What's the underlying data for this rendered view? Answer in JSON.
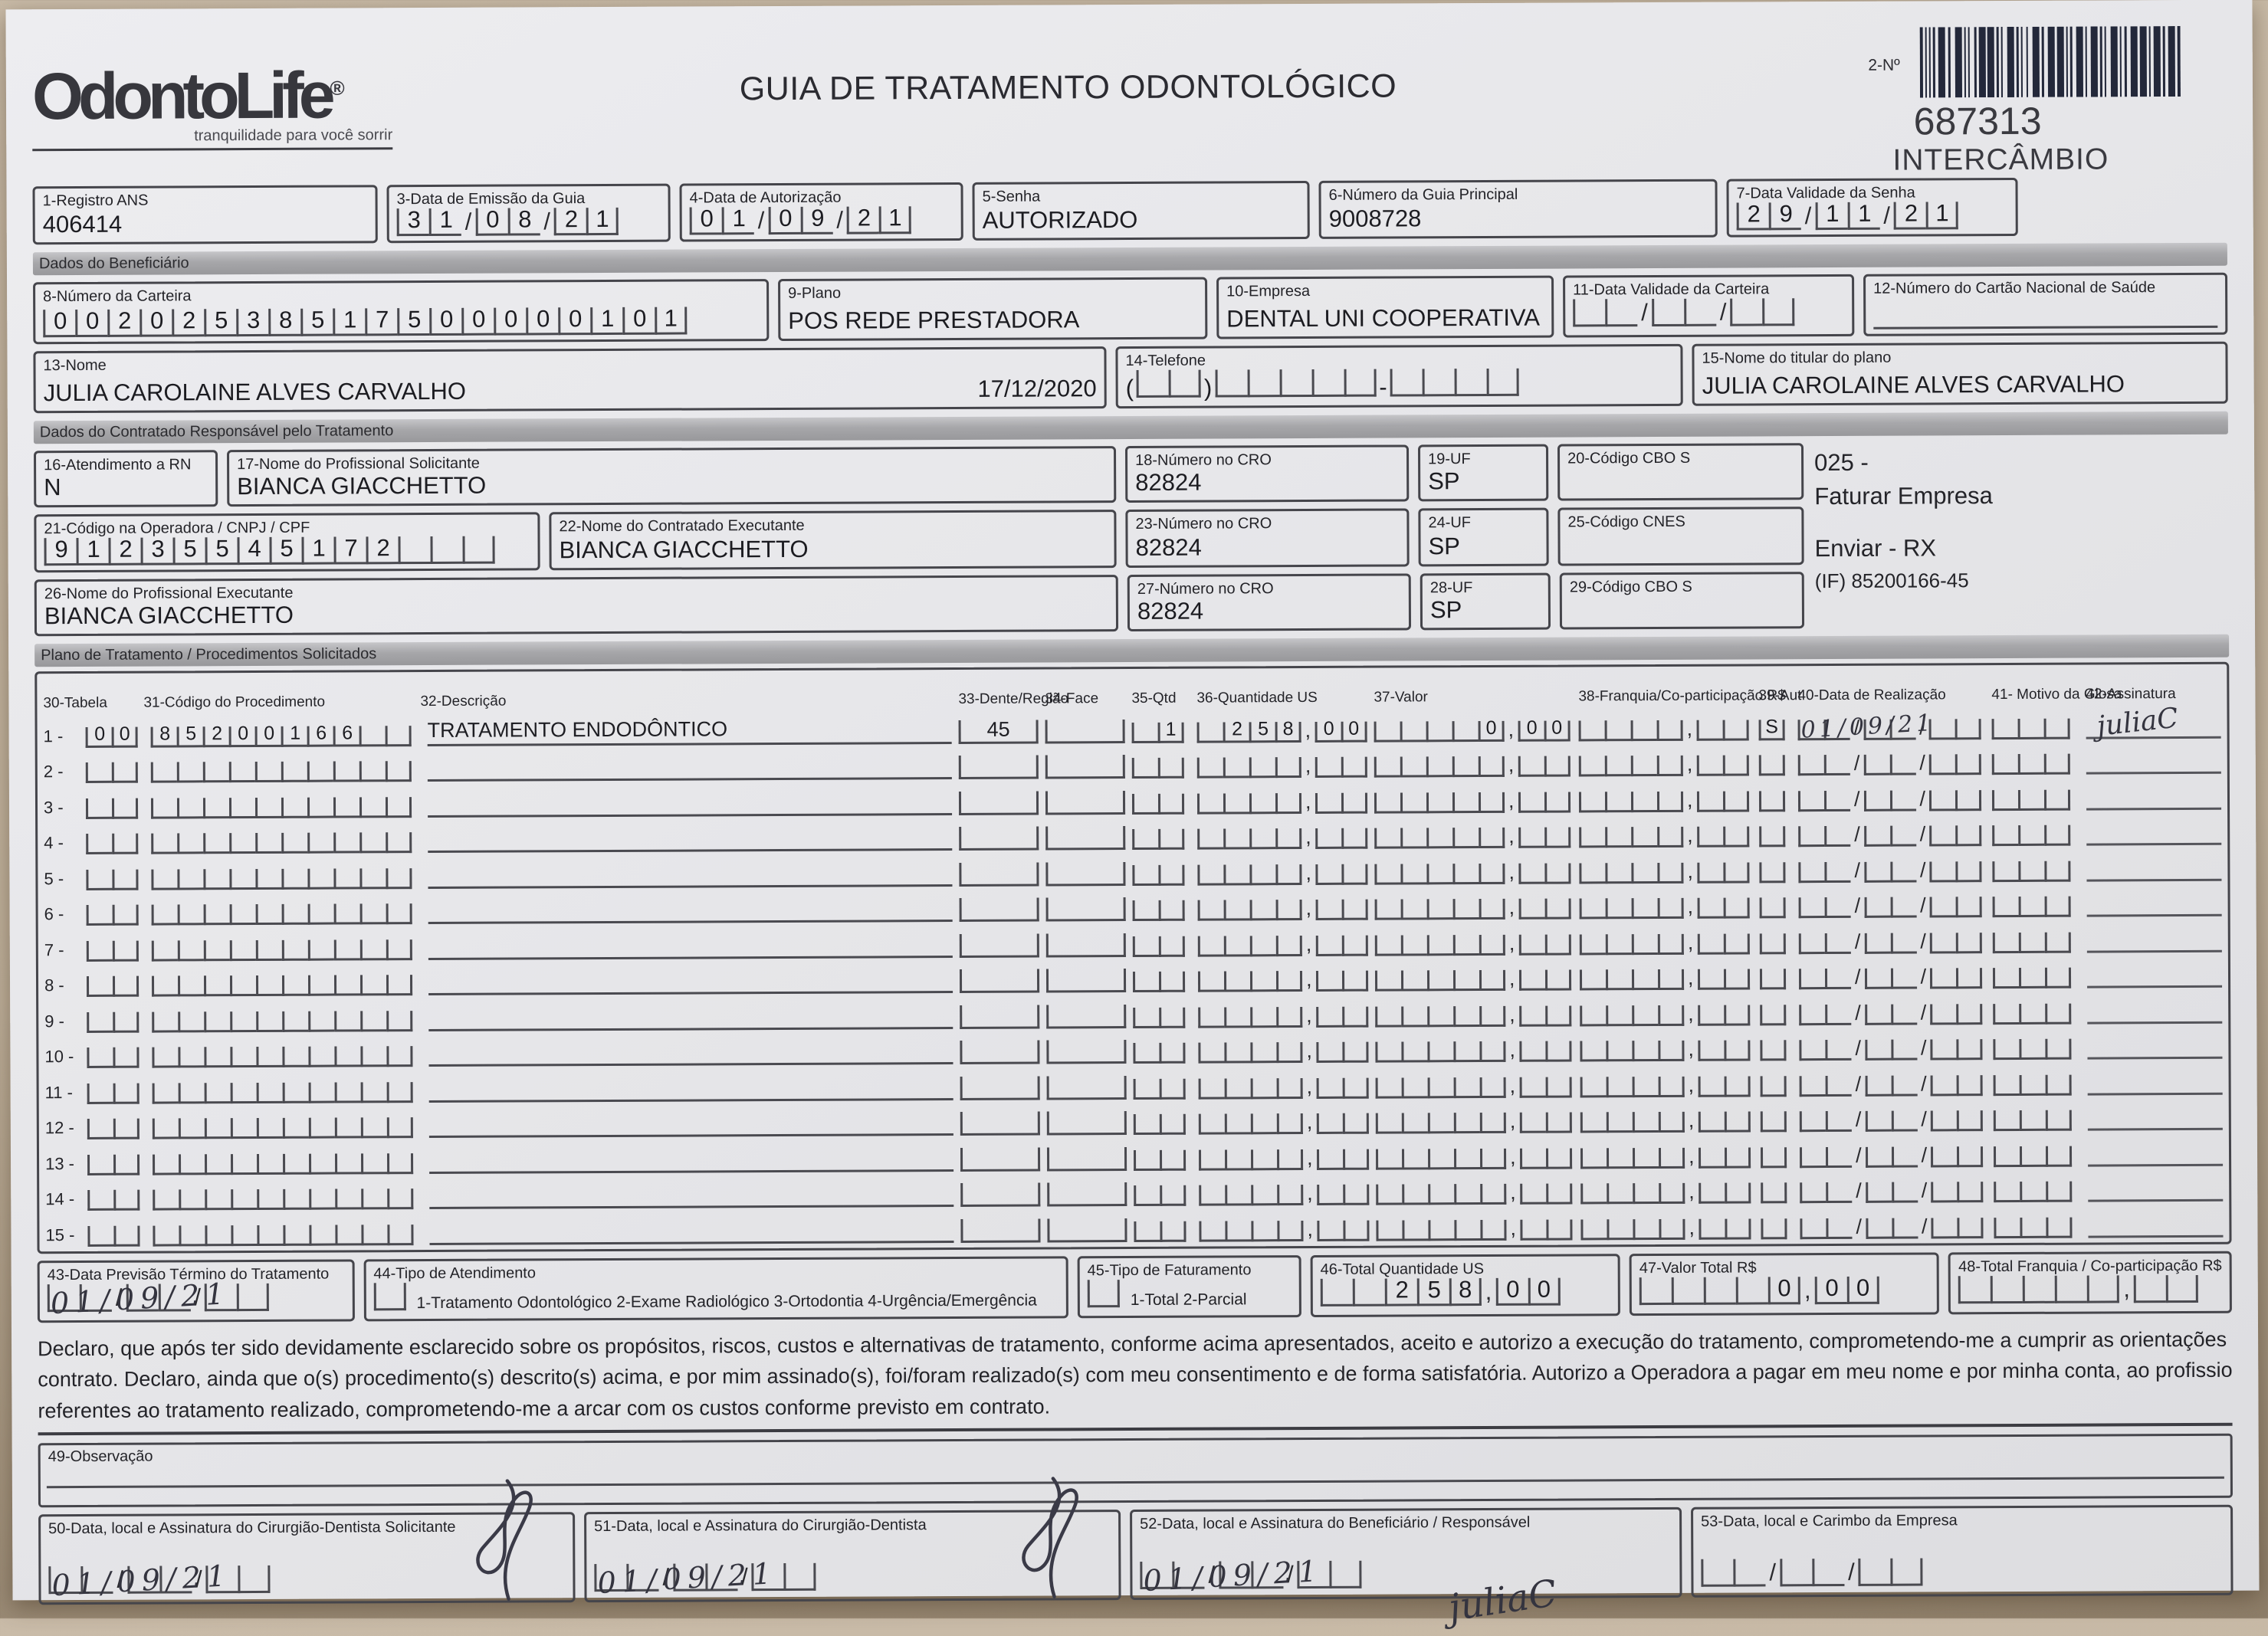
{
  "header": {
    "logo": {
      "brand": "OdontoLife",
      "registered": "®",
      "tagline": "tranquilidade para você sorrir"
    },
    "title": "GUIA DE TRATAMENTO ODONTOLÓGICO",
    "barcode_label": "2-Nº",
    "guide_number": "687313",
    "guide_type": "INTERCÂMBIO"
  },
  "top": {
    "registro_ans": {
      "label": "1-Registro ANS",
      "value": "406414"
    },
    "data_emissao": {
      "label": "3-Data de Emissão da Guia",
      "value": "31/08/21"
    },
    "data_autorizacao": {
      "label": "4-Data de Autorização",
      "value": "01/09/21"
    },
    "senha": {
      "label": "5-Senha",
      "value": "AUTORIZADO"
    },
    "guia_principal": {
      "label": "6-Número da Guia Principal",
      "value": "9008728"
    },
    "validade_senha": {
      "label": "7-Data Validade da Senha",
      "value": "29/11/21"
    }
  },
  "beneficiario": {
    "section": "Dados do Beneficiário",
    "carteira": {
      "label": "8-Número da Carteira",
      "value": "00202538517500000101"
    },
    "plano": {
      "label": "9-Plano",
      "value": "POS REDE PRESTADORA"
    },
    "empresa": {
      "label": "10-Empresa",
      "value": "DENTAL UNI COOPERATIVA"
    },
    "validade_carteira": {
      "label": "11-Data Validade da Carteira",
      "value": ""
    },
    "cartao_nacional": {
      "label": "12-Número do Cartão Nacional de Saúde",
      "value": ""
    },
    "nome": {
      "label": "13-Nome",
      "value": "JULIA CAROLAINE ALVES CARVALHO",
      "date_right": "17/12/2020"
    },
    "telefone": {
      "label": "14-Telefone",
      "value": "",
      "paren_l": "(",
      "paren_r": ")",
      "dash": "-"
    },
    "titular": {
      "label": "15-Nome do titular do plano",
      "value": "JULIA CAROLAINE ALVES CARVALHO"
    }
  },
  "contratado": {
    "section": "Dados do Contratado Responsável pelo Tratamento",
    "atendimento_rn": {
      "label": "16-Atendimento a RN",
      "value": "N"
    },
    "prof_solicitante": {
      "label": "17-Nome do Profissional Solicitante",
      "value": "BIANCA GIACCHETTO"
    },
    "cro_18": {
      "label": "18-Número no CRO",
      "value": "82824"
    },
    "uf_19": {
      "label": "19-UF",
      "value": "SP"
    },
    "cbo_20": {
      "label": "20-Código CBO S",
      "value": ""
    },
    "codigo_operadora": {
      "label": "21-Código na Operadora / CNPJ / CPF",
      "value": "91235545172"
    },
    "contratado_exec": {
      "label": "22-Nome do Contratado Executante",
      "value": "BIANCA GIACCHETTO"
    },
    "cro_23": {
      "label": "23-Número no CRO",
      "value": "82824"
    },
    "uf_24": {
      "label": "24-UF",
      "value": "SP"
    },
    "cnes_25": {
      "label": "25-Código CNES",
      "value": ""
    },
    "prof_exec": {
      "label": "26-Nome do Profissional Executante",
      "value": "BIANCA GIACCHETTO"
    },
    "cro_27": {
      "label": "27-Número no CRO",
      "value": "82824"
    },
    "uf_28": {
      "label": "28-UF",
      "value": "SP"
    },
    "cbo_29": {
      "label": "29-Código CBO S",
      "value": ""
    },
    "nota_1": "025 -",
    "nota_2": "Faturar Empresa",
    "nota_3": "Enviar - RX",
    "nota_4": "(IF) 85200166-45"
  },
  "procedimentos": {
    "section": "Plano de Tratamento / Procedimentos Solicitados",
    "columns": [
      "30-Tabela",
      "31-Código do Procedimento",
      "32-Descrição",
      "33-Dente/Região",
      "34-Face",
      "35-Qtd",
      "36-Quantidade US",
      "37-Valor",
      "38-Franquia/Co-participação R$",
      "39-Aut",
      "40-Data de Realização",
      "41- Motivo da Glosa",
      "42-Assinatura"
    ],
    "rows": [
      {
        "num": "1",
        "tabela": "00",
        "codigo": "85200166",
        "descricao": "TRATAMENTO ENDODÔNTICO",
        "dente": "45",
        "face": "",
        "qtd": "1",
        "quantidade_us": "258,00",
        "valor": "0,00",
        "franquia": "",
        "aut": "S",
        "data_realizacao": "01/09/21",
        "motivo": "",
        "assinatura": "juliaC"
      },
      {
        "num": "2",
        "tabela": "",
        "codigo": "",
        "descricao": "",
        "dente": "",
        "face": "",
        "qtd": "",
        "quantidade_us": "",
        "valor": "",
        "franquia": "",
        "aut": "",
        "data_realizacao": "",
        "motivo": "",
        "assinatura": ""
      },
      {
        "num": "3",
        "tabela": "",
        "codigo": "",
        "descricao": "",
        "dente": "",
        "face": "",
        "qtd": "",
        "quantidade_us": "",
        "valor": "",
        "franquia": "",
        "aut": "",
        "data_realizacao": "",
        "motivo": "",
        "assinatura": ""
      },
      {
        "num": "4",
        "tabela": "",
        "codigo": "",
        "descricao": "",
        "dente": "",
        "face": "",
        "qtd": "",
        "quantidade_us": "",
        "valor": "",
        "franquia": "",
        "aut": "",
        "data_realizacao": "",
        "motivo": "",
        "assinatura": ""
      },
      {
        "num": "5",
        "tabela": "",
        "codigo": "",
        "descricao": "",
        "dente": "",
        "face": "",
        "qtd": "",
        "quantidade_us": "",
        "valor": "",
        "franquia": "",
        "aut": "",
        "data_realizacao": "",
        "motivo": "",
        "assinatura": ""
      },
      {
        "num": "6",
        "tabela": "",
        "codigo": "",
        "descricao": "",
        "dente": "",
        "face": "",
        "qtd": "",
        "quantidade_us": "",
        "valor": "",
        "franquia": "",
        "aut": "",
        "data_realizacao": "",
        "motivo": "",
        "assinatura": ""
      },
      {
        "num": "7",
        "tabela": "",
        "codigo": "",
        "descricao": "",
        "dente": "",
        "face": "",
        "qtd": "",
        "quantidade_us": "",
        "valor": "",
        "franquia": "",
        "aut": "",
        "data_realizacao": "",
        "motivo": "",
        "assinatura": ""
      },
      {
        "num": "8",
        "tabela": "",
        "codigo": "",
        "descricao": "",
        "dente": "",
        "face": "",
        "qtd": "",
        "quantidade_us": "",
        "valor": "",
        "franquia": "",
        "aut": "",
        "data_realizacao": "",
        "motivo": "",
        "assinatura": ""
      },
      {
        "num": "9",
        "tabela": "",
        "codigo": "",
        "descricao": "",
        "dente": "",
        "face": "",
        "qtd": "",
        "quantidade_us": "",
        "valor": "",
        "franquia": "",
        "aut": "",
        "data_realizacao": "",
        "motivo": "",
        "assinatura": ""
      },
      {
        "num": "10",
        "tabela": "",
        "codigo": "",
        "descricao": "",
        "dente": "",
        "face": "",
        "qtd": "",
        "quantidade_us": "",
        "valor": "",
        "franquia": "",
        "aut": "",
        "data_realizacao": "",
        "motivo": "",
        "assinatura": ""
      },
      {
        "num": "11",
        "tabela": "",
        "codigo": "",
        "descricao": "",
        "dente": "",
        "face": "",
        "qtd": "",
        "quantidade_us": "",
        "valor": "",
        "franquia": "",
        "aut": "",
        "data_realizacao": "",
        "motivo": "",
        "assinatura": ""
      },
      {
        "num": "12",
        "tabela": "",
        "codigo": "",
        "descricao": "",
        "dente": "",
        "face": "",
        "qtd": "",
        "quantidade_us": "",
        "valor": "",
        "franquia": "",
        "aut": "",
        "data_realizacao": "",
        "motivo": "",
        "assinatura": ""
      },
      {
        "num": "13",
        "tabela": "",
        "codigo": "",
        "descricao": "",
        "dente": "",
        "face": "",
        "qtd": "",
        "quantidade_us": "",
        "valor": "",
        "franquia": "",
        "aut": "",
        "data_realizacao": "",
        "motivo": "",
        "assinatura": ""
      },
      {
        "num": "14",
        "tabela": "",
        "codigo": "",
        "descricao": "",
        "dente": "",
        "face": "",
        "qtd": "",
        "quantidade_us": "",
        "valor": "",
        "franquia": "",
        "aut": "",
        "data_realizacao": "",
        "motivo": "",
        "assinatura": ""
      },
      {
        "num": "15",
        "tabela": "",
        "codigo": "",
        "descricao": "",
        "dente": "",
        "face": "",
        "qtd": "",
        "quantidade_us": "",
        "valor": "",
        "franquia": "",
        "aut": "",
        "data_realizacao": "",
        "motivo": "",
        "assinatura": ""
      }
    ]
  },
  "rodape": {
    "data_previsao": {
      "label": "43-Data Previsão Término do Tratamento",
      "value": "01/09/21"
    },
    "tipo_atendimento": {
      "label": "44-Tipo de Atendimento",
      "options": "1-Tratamento Odontológico  2-Exame Radiológico  3-Ortodontia  4-Urgência/Emergência",
      "value": ""
    },
    "tipo_faturamento": {
      "label": "45-Tipo de Faturamento",
      "options": "1-Total  2-Parcial",
      "value": ""
    },
    "total_us": {
      "label": "46-Total Quantidade US",
      "value": "258,00"
    },
    "valor_total": {
      "label": "47-Valor Total R$",
      "value": "0,00"
    },
    "total_franquia": {
      "label": "48-Total Franquia / Co-participação R$",
      "value": ""
    }
  },
  "declaracao": {
    "linha1": "Declaro, que após ter sido devidamente esclarecido sobre os propósitos, riscos, custos e alternativas de tratamento, conforme acima apresentados, aceito e autorizo a execução do tratamento, comprometendo-me a cumprir as orientações do profissional assistente e arcar com os custos previstos er",
    "linha2": "contrato. Declaro, ainda que o(s) procedimento(s) descrito(s) acima, e por mim assinado(s), foi/foram realizado(s) com meu consentimento e de forma satisfatória. Autorizo a Operadora a pagar em meu nome e por minha conta, ao profissional contratado que assina esse documento, os valore",
    "linha3": "referentes ao tratamento realizado, comprometendo-me a arcar com os custos conforme previsto em contrato."
  },
  "observacao": {
    "label": "49-Observação"
  },
  "assinaturas": {
    "solicitante": {
      "label": "50-Data, local e Assinatura do Cirurgião-Dentista Solicitante",
      "data": "01/09/21"
    },
    "dentista": {
      "label": "51-Data, local e Assinatura do Cirurgião-Dentista",
      "data": "01/09/21"
    },
    "beneficiario": {
      "label": "52-Data, local e Assinatura do Beneficiário / Responsável",
      "data": "01/09/21",
      "assinatura": "juliaC"
    },
    "empresa": {
      "label": "53-Data, local e Carimbo da Empresa",
      "data": ""
    }
  }
}
